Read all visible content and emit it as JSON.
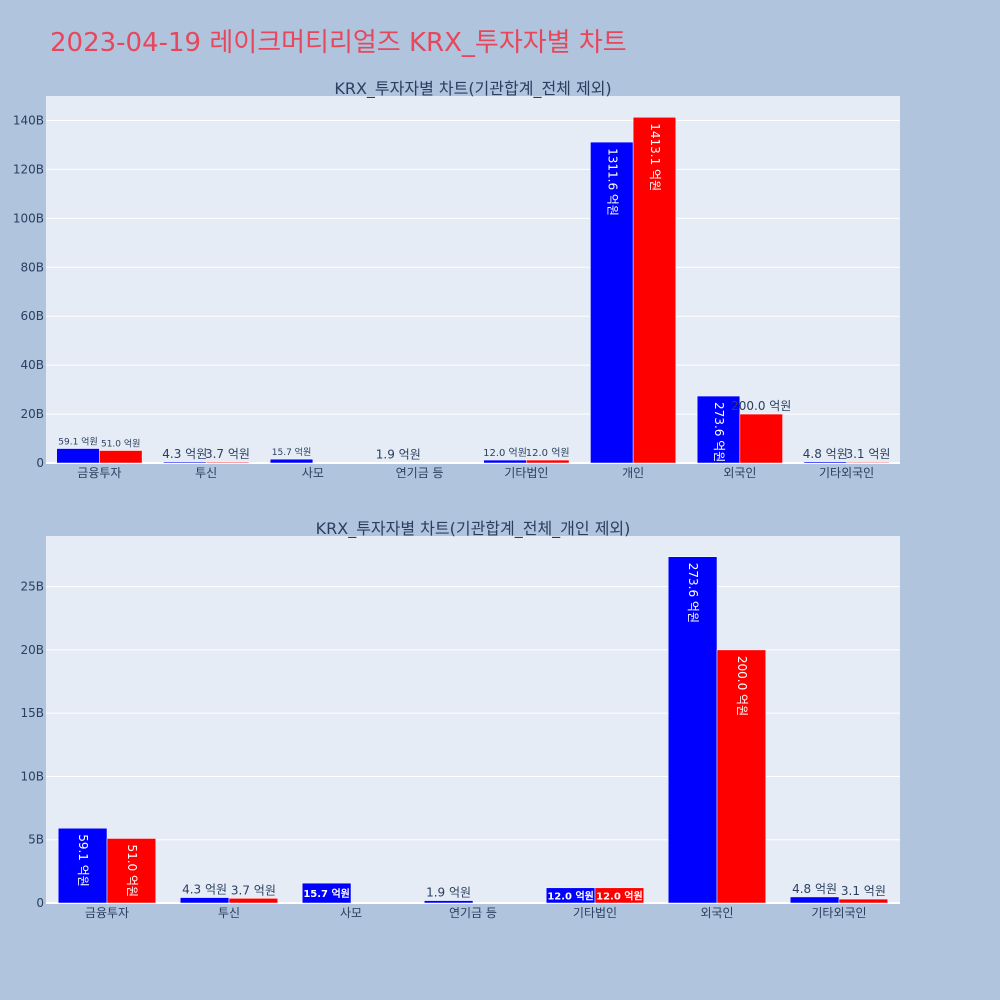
{
  "page": {
    "title": "2023-04-19 레이크머티리얼즈 KRX_투자자별 차트",
    "title_color": "#e8475b",
    "background": "#b0c4de",
    "plot_background": "#e5ecf6"
  },
  "chart_data": [
    {
      "type": "bar",
      "title": "KRX_투자자별 차트(기관합계_전체 제외)",
      "xlabel": "",
      "ylabel": "",
      "categories": [
        "금융투자",
        "투신",
        "사모",
        "연기금 등",
        "기타법인",
        "개인",
        "외국인",
        "기타외국인"
      ],
      "series": [
        {
          "color": "#0000ff",
          "values": [
            5.91,
            0.43,
            1.57,
            0.19,
            1.2,
            131.16,
            27.36,
            0.48
          ],
          "labels": [
            "59.1 억원",
            "4.3 억원",
            "15.7 억원",
            "1.9 억원",
            "12.0 억원",
            "1311.6 억원",
            "273.6 억원",
            "4.8 억원"
          ]
        },
        {
          "color": "#ff0000",
          "values": [
            5.1,
            0.37,
            null,
            null,
            1.2,
            141.31,
            20.0,
            0.31
          ],
          "labels": [
            "51.0 억원",
            "3.7 억원",
            "",
            "",
            "12.0 억원",
            "1413.1 억원",
            "200.0 억원",
            "3.1 억원"
          ]
        }
      ],
      "ylim": [
        0,
        150
      ],
      "yticks": [
        0,
        20,
        40,
        60,
        80,
        100,
        120,
        140
      ],
      "yticklabels": [
        "0",
        "20B",
        "40B",
        "60B",
        "80B",
        "100B",
        "120B",
        "140B"
      ],
      "grid": true
    },
    {
      "type": "bar",
      "title": "KRX_투자자별 차트(기관합계_전체_개인 제외)",
      "xlabel": "",
      "ylabel": "",
      "categories": [
        "금융투자",
        "투신",
        "사모",
        "연기금 등",
        "기타법인",
        "외국인",
        "기타외국인"
      ],
      "series": [
        {
          "color": "#0000ff",
          "values": [
            5.91,
            0.43,
            1.57,
            0.19,
            1.2,
            27.36,
            0.48
          ],
          "labels": [
            "59.1 억원",
            "4.3 억원",
            "15.7 억원",
            "1.9 억원",
            "12.0 억원",
            "273.6 억원",
            "4.8 억원"
          ]
        },
        {
          "color": "#ff0000",
          "values": [
            5.1,
            0.37,
            null,
            null,
            1.2,
            20.0,
            0.31
          ],
          "labels": [
            "51.0 억원",
            "3.7 억원",
            "",
            "",
            "12.0 억원",
            "200.0 억원",
            "3.1 억원"
          ]
        }
      ],
      "ylim": [
        0,
        29
      ],
      "yticks": [
        0,
        5,
        10,
        15,
        20,
        25
      ],
      "yticklabels": [
        "0",
        "5B",
        "10B",
        "15B",
        "20B",
        "25B"
      ],
      "grid": true
    }
  ]
}
